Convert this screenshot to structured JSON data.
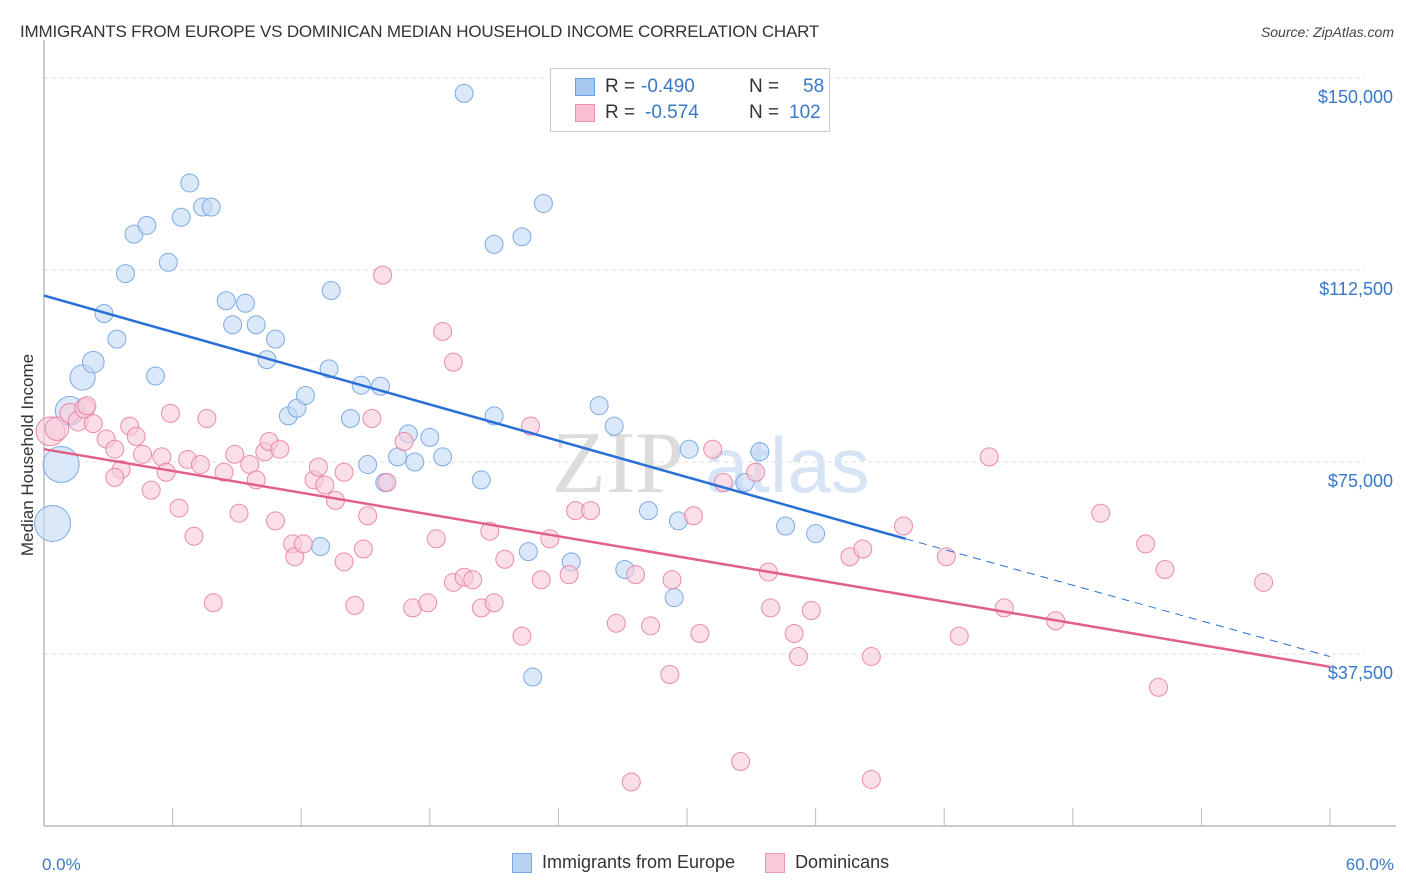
{
  "header": {
    "title": "IMMIGRANTS FROM EUROPE VS DOMINICAN MEDIAN HOUSEHOLD INCOME CORRELATION CHART",
    "source": "Source: ZipAtlas.com"
  },
  "watermark": {
    "part1": "ZIP",
    "part2": "atlas"
  },
  "legend": {
    "rows": [
      {
        "r_label": "R =",
        "r_value": "-0.490",
        "n_label": "N =",
        "n_value": "58",
        "color": "#a9c8f0",
        "border": "#6a9fe0"
      },
      {
        "r_label": "R =",
        "r_value": "-0.574",
        "n_label": "N =",
        "n_value": "102",
        "color": "#f8bfd0",
        "border": "#e890ac"
      }
    ]
  },
  "bottom_legend": [
    {
      "label": "Immigrants from Europe",
      "color": "#b9d3f3",
      "border": "#7aa8e3"
    },
    {
      "label": "Dominicans",
      "color": "#f9c9d7",
      "border": "#ec9ab4"
    }
  ],
  "chart_data": {
    "type": "scatter",
    "title": "IMMIGRANTS FROM EUROPE VS DOMINICAN MEDIAN HOUSEHOLD INCOME CORRELATION CHART",
    "xlabel": "",
    "ylabel": "Median Household Income",
    "xlim": [
      0,
      60
    ],
    "ylim": [
      0,
      155000
    ],
    "x_tick_labels": [
      "0.0%",
      "60.0%"
    ],
    "y_ticks": [
      37500,
      75000,
      112500,
      150000
    ],
    "y_tick_labels": [
      "$37,500",
      "$75,000",
      "$112,500",
      "$150,000"
    ],
    "grid": true,
    "legend_position": "top-center",
    "series": [
      {
        "name": "Immigrants from Europe",
        "color": "#6a9fe0",
        "fill": "#c3d9f5",
        "R": -0.49,
        "N": 58,
        "trend": {
          "x": [
            0,
            40.2
          ],
          "y": [
            107500,
            60000
          ],
          "dashed_extension_to": [
            60,
            37000
          ]
        },
        "points": [
          {
            "x": 0.4,
            "y": 63000,
            "s": 2
          },
          {
            "x": 0.8,
            "y": 74500,
            "s": 2
          },
          {
            "x": 1.2,
            "y": 85000,
            "s": 1.6
          },
          {
            "x": 1.8,
            "y": 91500,
            "s": 1.4
          },
          {
            "x": 2.3,
            "y": 94500,
            "s": 1.2
          },
          {
            "x": 3.4,
            "y": 99000,
            "s": 1
          },
          {
            "x": 2.8,
            "y": 104000,
            "s": 1
          },
          {
            "x": 3.8,
            "y": 111800,
            "s": 1
          },
          {
            "x": 4.2,
            "y": 119500,
            "s": 1
          },
          {
            "x": 4.8,
            "y": 121200,
            "s": 1
          },
          {
            "x": 5.2,
            "y": 91800,
            "s": 1
          },
          {
            "x": 5.8,
            "y": 114000,
            "s": 1
          },
          {
            "x": 6.4,
            "y": 122800,
            "s": 1
          },
          {
            "x": 6.8,
            "y": 129500,
            "s": 1
          },
          {
            "x": 7.4,
            "y": 124800,
            "s": 1
          },
          {
            "x": 7.8,
            "y": 124800,
            "s": 1
          },
          {
            "x": 8.5,
            "y": 106500,
            "s": 1
          },
          {
            "x": 8.8,
            "y": 101800,
            "s": 1
          },
          {
            "x": 9.4,
            "y": 106000,
            "s": 1
          },
          {
            "x": 9.9,
            "y": 101800,
            "s": 1
          },
          {
            "x": 10.4,
            "y": 95000,
            "s": 1
          },
          {
            "x": 10.8,
            "y": 99000,
            "s": 1
          },
          {
            "x": 11.4,
            "y": 84000,
            "s": 1
          },
          {
            "x": 11.8,
            "y": 85500,
            "s": 1
          },
          {
            "x": 12.2,
            "y": 88000,
            "s": 1
          },
          {
            "x": 12.9,
            "y": 58500,
            "s": 1
          },
          {
            "x": 13.4,
            "y": 108500,
            "s": 1
          },
          {
            "x": 13.3,
            "y": 93200,
            "s": 1
          },
          {
            "x": 14.3,
            "y": 83500,
            "s": 1
          },
          {
            "x": 14.8,
            "y": 90000,
            "s": 1
          },
          {
            "x": 15.1,
            "y": 74500,
            "s": 1
          },
          {
            "x": 15.7,
            "y": 89800,
            "s": 1
          },
          {
            "x": 15.9,
            "y": 71000,
            "s": 1
          },
          {
            "x": 16.5,
            "y": 76000,
            "s": 1
          },
          {
            "x": 17.0,
            "y": 80500,
            "s": 1
          },
          {
            "x": 17.3,
            "y": 75000,
            "s": 1
          },
          {
            "x": 18.0,
            "y": 79800,
            "s": 1
          },
          {
            "x": 18.6,
            "y": 76000,
            "s": 1
          },
          {
            "x": 19.6,
            "y": 147000,
            "s": 1
          },
          {
            "x": 20.4,
            "y": 71500,
            "s": 1
          },
          {
            "x": 21.0,
            "y": 84000,
            "s": 1
          },
          {
            "x": 21.0,
            "y": 117500,
            "s": 1
          },
          {
            "x": 22.3,
            "y": 119000,
            "s": 1
          },
          {
            "x": 22.6,
            "y": 57500,
            "s": 1
          },
          {
            "x": 22.8,
            "y": 33000,
            "s": 1
          },
          {
            "x": 23.3,
            "y": 125500,
            "s": 1
          },
          {
            "x": 24.6,
            "y": 55500,
            "s": 1
          },
          {
            "x": 25.9,
            "y": 86000,
            "s": 1
          },
          {
            "x": 26.6,
            "y": 82000,
            "s": 1
          },
          {
            "x": 27.1,
            "y": 54000,
            "s": 1
          },
          {
            "x": 28.2,
            "y": 65500,
            "s": 1
          },
          {
            "x": 29.4,
            "y": 48500,
            "s": 1
          },
          {
            "x": 29.6,
            "y": 63500,
            "s": 1
          },
          {
            "x": 30.1,
            "y": 77500,
            "s": 1
          },
          {
            "x": 32.7,
            "y": 71000,
            "s": 1
          },
          {
            "x": 33.4,
            "y": 77000,
            "s": 1
          },
          {
            "x": 34.6,
            "y": 62500,
            "s": 1
          },
          {
            "x": 36.0,
            "y": 61000,
            "s": 1
          }
        ]
      },
      {
        "name": "Dominicans",
        "color": "#e8799f",
        "fill": "#f9cad8",
        "R": -0.574,
        "N": 102,
        "trend": {
          "x": [
            0,
            60
          ],
          "y": [
            77500,
            35000
          ]
        },
        "points": [
          {
            "x": 0.3,
            "y": 81000,
            "s": 1.6
          },
          {
            "x": 0.6,
            "y": 81500,
            "s": 1.3
          },
          {
            "x": 1.2,
            "y": 84500,
            "s": 1.1
          },
          {
            "x": 1.6,
            "y": 83000,
            "s": 1.1
          },
          {
            "x": 1.9,
            "y": 85500,
            "s": 1.1
          },
          {
            "x": 2.0,
            "y": 86000,
            "s": 1
          },
          {
            "x": 2.3,
            "y": 82500,
            "s": 1
          },
          {
            "x": 2.9,
            "y": 79500,
            "s": 1
          },
          {
            "x": 3.3,
            "y": 77500,
            "s": 1
          },
          {
            "x": 3.6,
            "y": 73500,
            "s": 1
          },
          {
            "x": 3.3,
            "y": 72000,
            "s": 1
          },
          {
            "x": 4.0,
            "y": 82000,
            "s": 1
          },
          {
            "x": 4.3,
            "y": 80000,
            "s": 1
          },
          {
            "x": 4.6,
            "y": 76500,
            "s": 1
          },
          {
            "x": 5.0,
            "y": 69500,
            "s": 1
          },
          {
            "x": 5.5,
            "y": 76000,
            "s": 1
          },
          {
            "x": 5.7,
            "y": 73000,
            "s": 1
          },
          {
            "x": 5.9,
            "y": 84500,
            "s": 1
          },
          {
            "x": 6.3,
            "y": 66000,
            "s": 1
          },
          {
            "x": 6.7,
            "y": 75500,
            "s": 1
          },
          {
            "x": 7.0,
            "y": 60500,
            "s": 1
          },
          {
            "x": 7.3,
            "y": 74500,
            "s": 1
          },
          {
            "x": 7.6,
            "y": 83500,
            "s": 1
          },
          {
            "x": 7.9,
            "y": 47500,
            "s": 1
          },
          {
            "x": 8.4,
            "y": 73000,
            "s": 1
          },
          {
            "x": 8.9,
            "y": 76500,
            "s": 1
          },
          {
            "x": 9.1,
            "y": 65000,
            "s": 1
          },
          {
            "x": 9.6,
            "y": 74500,
            "s": 1
          },
          {
            "x": 9.9,
            "y": 71500,
            "s": 1
          },
          {
            "x": 10.3,
            "y": 77000,
            "s": 1
          },
          {
            "x": 10.5,
            "y": 79000,
            "s": 1
          },
          {
            "x": 10.8,
            "y": 63500,
            "s": 1
          },
          {
            "x": 11.0,
            "y": 77500,
            "s": 1
          },
          {
            "x": 11.6,
            "y": 59000,
            "s": 1
          },
          {
            "x": 11.7,
            "y": 56500,
            "s": 1
          },
          {
            "x": 12.1,
            "y": 59000,
            "s": 1
          },
          {
            "x": 12.6,
            "y": 71500,
            "s": 1
          },
          {
            "x": 12.8,
            "y": 74000,
            "s": 1
          },
          {
            "x": 13.1,
            "y": 70500,
            "s": 1
          },
          {
            "x": 13.6,
            "y": 67500,
            "s": 1
          },
          {
            "x": 14.0,
            "y": 73000,
            "s": 1
          },
          {
            "x": 14.0,
            "y": 55500,
            "s": 1
          },
          {
            "x": 14.5,
            "y": 47000,
            "s": 1
          },
          {
            "x": 14.9,
            "y": 58000,
            "s": 1
          },
          {
            "x": 15.1,
            "y": 64500,
            "s": 1
          },
          {
            "x": 15.3,
            "y": 83500,
            "s": 1
          },
          {
            "x": 15.8,
            "y": 111500,
            "s": 1
          },
          {
            "x": 16.0,
            "y": 71000,
            "s": 1
          },
          {
            "x": 16.8,
            "y": 79000,
            "s": 1
          },
          {
            "x": 17.2,
            "y": 46500,
            "s": 1
          },
          {
            "x": 17.9,
            "y": 47500,
            "s": 1
          },
          {
            "x": 18.3,
            "y": 60000,
            "s": 1
          },
          {
            "x": 18.6,
            "y": 100500,
            "s": 1
          },
          {
            "x": 19.1,
            "y": 94500,
            "s": 1
          },
          {
            "x": 19.1,
            "y": 51500,
            "s": 1
          },
          {
            "x": 19.6,
            "y": 52500,
            "s": 1
          },
          {
            "x": 20.0,
            "y": 52000,
            "s": 1
          },
          {
            "x": 20.4,
            "y": 46500,
            "s": 1
          },
          {
            "x": 20.8,
            "y": 61500,
            "s": 1
          },
          {
            "x": 21.0,
            "y": 47500,
            "s": 1
          },
          {
            "x": 21.5,
            "y": 56000,
            "s": 1
          },
          {
            "x": 22.3,
            "y": 41000,
            "s": 1
          },
          {
            "x": 22.7,
            "y": 82000,
            "s": 1
          },
          {
            "x": 23.2,
            "y": 52000,
            "s": 1
          },
          {
            "x": 23.6,
            "y": 60000,
            "s": 1
          },
          {
            "x": 24.5,
            "y": 53000,
            "s": 1
          },
          {
            "x": 24.8,
            "y": 65500,
            "s": 1
          },
          {
            "x": 25.5,
            "y": 65500,
            "s": 1
          },
          {
            "x": 26.7,
            "y": 43500,
            "s": 1
          },
          {
            "x": 27.4,
            "y": 12500,
            "s": 1
          },
          {
            "x": 27.6,
            "y": 53000,
            "s": 1
          },
          {
            "x": 28.3,
            "y": 43000,
            "s": 1
          },
          {
            "x": 29.2,
            "y": 33500,
            "s": 1
          },
          {
            "x": 29.3,
            "y": 52000,
            "s": 1
          },
          {
            "x": 30.3,
            "y": 64500,
            "s": 1
          },
          {
            "x": 30.6,
            "y": 41500,
            "s": 1
          },
          {
            "x": 31.2,
            "y": 77500,
            "s": 1
          },
          {
            "x": 31.7,
            "y": 71000,
            "s": 1
          },
          {
            "x": 32.5,
            "y": 16500,
            "s": 1
          },
          {
            "x": 33.2,
            "y": 73000,
            "s": 1
          },
          {
            "x": 33.8,
            "y": 53500,
            "s": 1
          },
          {
            "x": 33.9,
            "y": 46500,
            "s": 1
          },
          {
            "x": 35.0,
            "y": 41500,
            "s": 1
          },
          {
            "x": 35.2,
            "y": 37000,
            "s": 1
          },
          {
            "x": 35.8,
            "y": 46000,
            "s": 1
          },
          {
            "x": 37.6,
            "y": 56500,
            "s": 1
          },
          {
            "x": 38.2,
            "y": 58000,
            "s": 1
          },
          {
            "x": 38.6,
            "y": 37000,
            "s": 1
          },
          {
            "x": 38.6,
            "y": 13000,
            "s": 1
          },
          {
            "x": 40.1,
            "y": 62500,
            "s": 1
          },
          {
            "x": 42.1,
            "y": 56500,
            "s": 1
          },
          {
            "x": 42.7,
            "y": 41000,
            "s": 1
          },
          {
            "x": 44.1,
            "y": 76000,
            "s": 1
          },
          {
            "x": 44.8,
            "y": 46500,
            "s": 1
          },
          {
            "x": 47.2,
            "y": 44000,
            "s": 1
          },
          {
            "x": 49.3,
            "y": 65000,
            "s": 1
          },
          {
            "x": 51.4,
            "y": 59000,
            "s": 1
          },
          {
            "x": 52.0,
            "y": 31000,
            "s": 1
          },
          {
            "x": 52.3,
            "y": 54000,
            "s": 1
          },
          {
            "x": 56.9,
            "y": 51500,
            "s": 1
          }
        ]
      }
    ]
  }
}
